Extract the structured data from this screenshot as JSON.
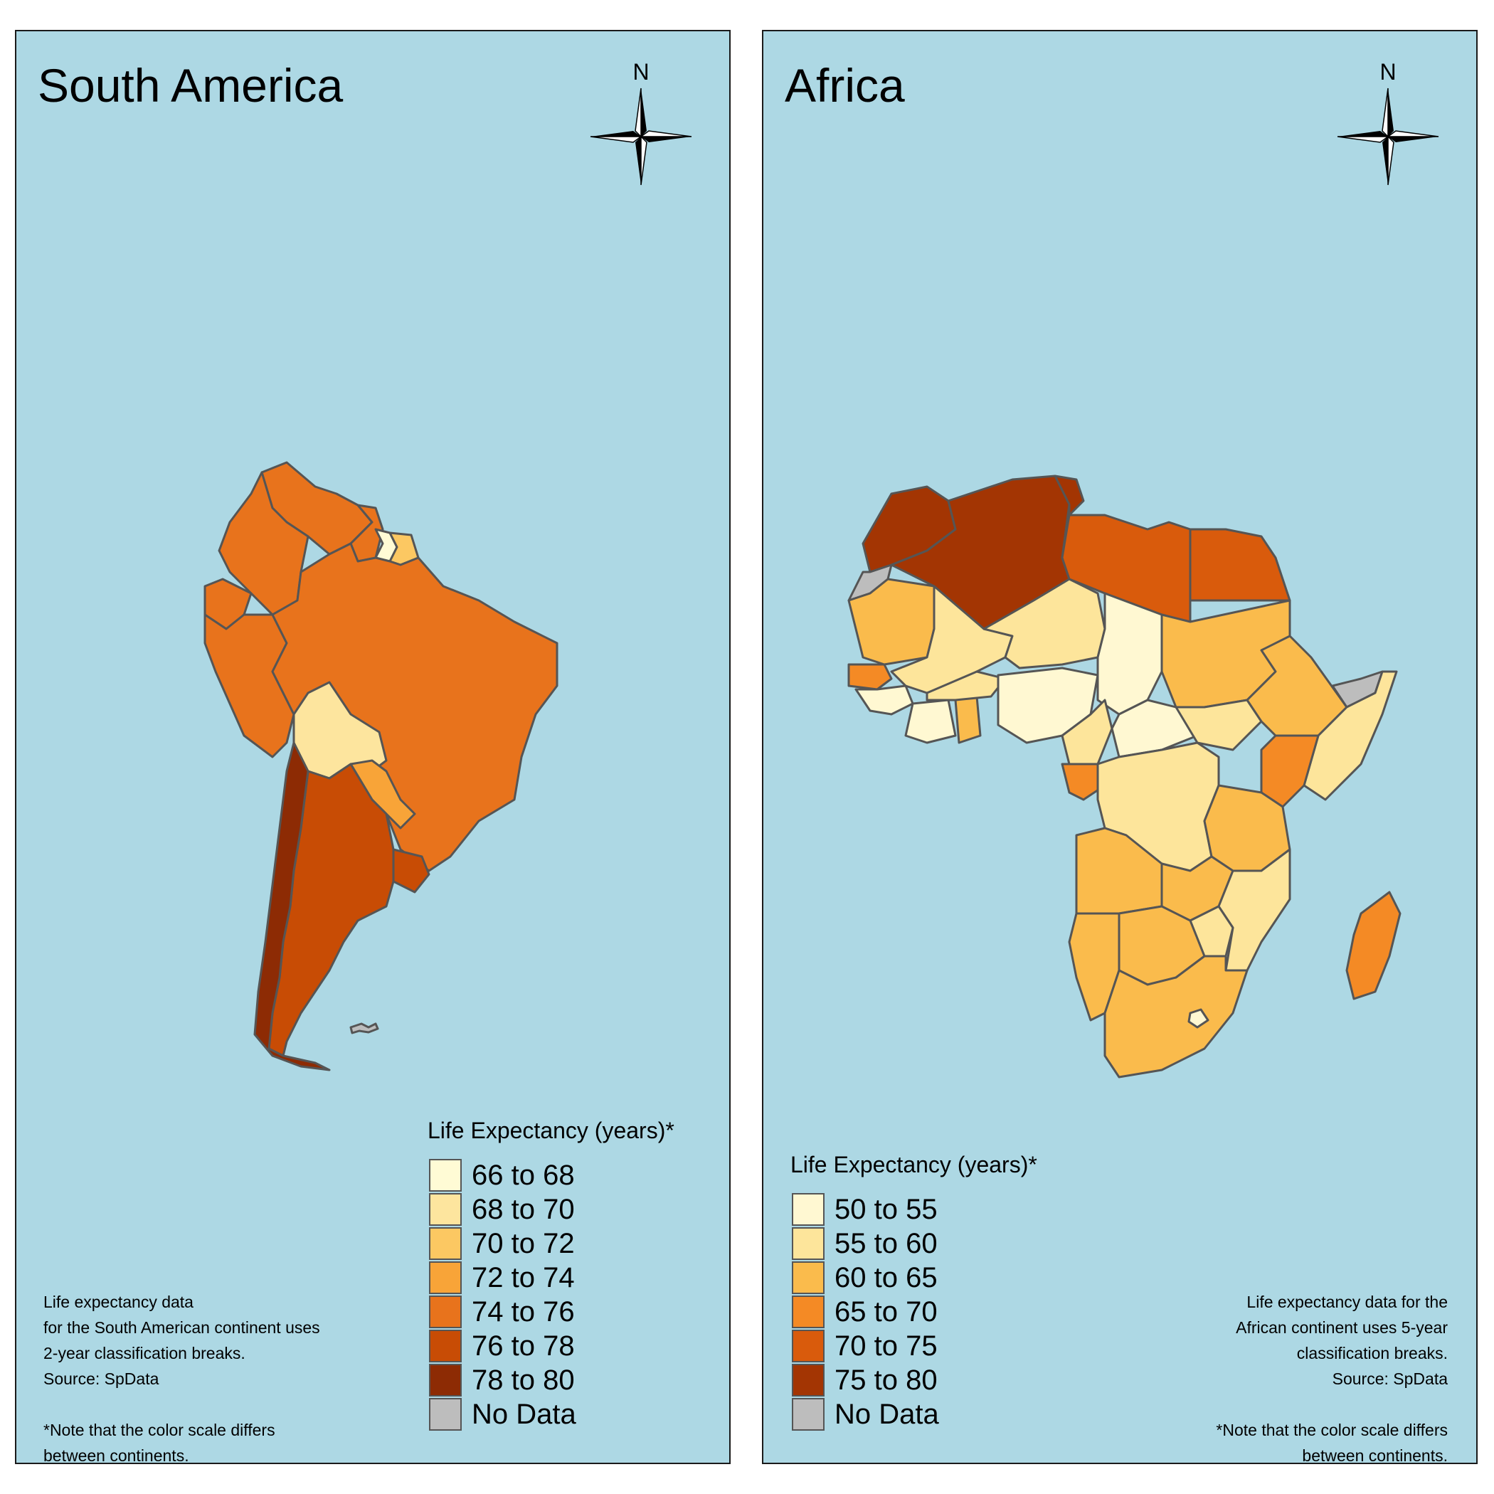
{
  "colors": {
    "ocean": "#add8e4",
    "border": "#555555",
    "no_data": "#bdbdbd"
  },
  "south_america": {
    "title": "South America",
    "compass_label": "N",
    "legend": {
      "title": "Life Expectancy (years)*",
      "items": [
        {
          "label": "66 to 68",
          "color": "#fffbd5"
        },
        {
          "label": "68 to 70",
          "color": "#fde59e"
        },
        {
          "label": "70 to 72",
          "color": "#fcc862"
        },
        {
          "label": "72 to 74",
          "color": "#f8a438"
        },
        {
          "label": "74 to 76",
          "color": "#e8731c"
        },
        {
          "label": "76 to 78",
          "color": "#c84c05"
        },
        {
          "label": "78 to 80",
          "color": "#8d2b04"
        },
        {
          "label": "No Data",
          "color": "#bdbdbd"
        }
      ]
    },
    "note": "Life expectancy data\nfor the South American continent uses\n2-year classification breaks.\nSource: SpData\n\n*Note that the color scale differs\nbetween continents."
  },
  "africa": {
    "title": "Africa",
    "compass_label": "N",
    "legend": {
      "title": "Life Expectancy (years)*",
      "items": [
        {
          "label": "50 to 55",
          "color": "#fff8d2"
        },
        {
          "label": "55 to 60",
          "color": "#fde59b"
        },
        {
          "label": "60 to 65",
          "color": "#fabb4c"
        },
        {
          "label": "65 to 70",
          "color": "#f48a25"
        },
        {
          "label": "70 to 75",
          "color": "#d95b0c"
        },
        {
          "label": "75 to 80",
          "color": "#a33503"
        },
        {
          "label": "No Data",
          "color": "#bdbdbd"
        }
      ]
    },
    "note": "Life expectancy data for the\nAfrican continent uses 5-year\nclassification breaks.\nSource: SpData \n\n*Note that the color scale differs\nbetween continents."
  }
}
